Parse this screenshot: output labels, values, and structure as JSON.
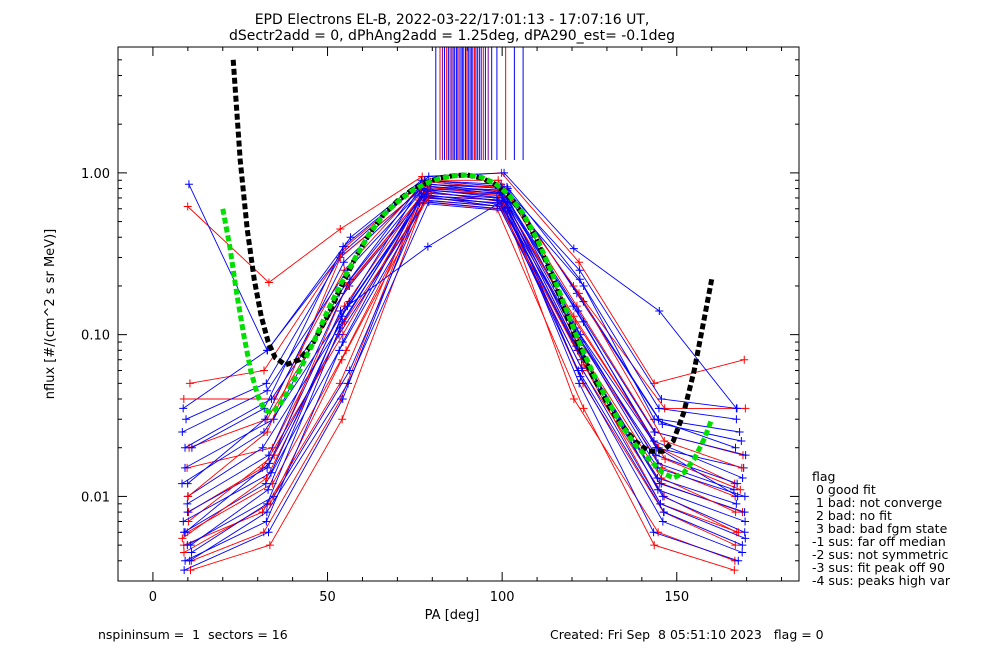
{
  "chart_data": {
    "type": "line",
    "title_line1": "EPD Electrons EL-B, 2022-03-22/17:01:13 - 17:07:16 UT,",
    "title_line2": "dSectr2add = 0, dPhAng2add = 1.25deg, dPA290_est=  -0.1deg",
    "xlabel": "PA [deg]",
    "ylabel": "nflux [#/(cm^2 s sr MeV)]",
    "x_range": [
      -10,
      185
    ],
    "y_range": [
      0.003,
      6.0
    ],
    "y_scale": "log",
    "x_ticks": [
      0,
      50,
      100,
      150
    ],
    "x_tick_labels": [
      "0",
      "50",
      "100",
      "150"
    ],
    "y_ticks": [
      0.01,
      0.1,
      1.0
    ],
    "y_tick_labels": [
      "0.01",
      "0.10",
      "1.00"
    ],
    "sectors_pa": [
      10,
      33,
      55,
      78,
      100,
      122,
      145,
      168
    ],
    "blue_profiles": [
      [
        0.85,
        0.08,
        0.32,
        0.95,
        1.0,
        0.34,
        0.14,
        0.035
      ],
      [
        0.035,
        0.08,
        0.4,
        0.9,
        0.85,
        0.25,
        0.04,
        0.035
      ],
      [
        0.03,
        0.05,
        0.3,
        0.88,
        0.8,
        0.2,
        0.035,
        0.03
      ],
      [
        0.025,
        0.045,
        0.25,
        0.85,
        0.8,
        0.18,
        0.03,
        0.025
      ],
      [
        0.02,
        0.04,
        0.2,
        0.82,
        0.78,
        0.16,
        0.028,
        0.022
      ],
      [
        0.015,
        0.03,
        0.18,
        0.8,
        0.75,
        0.14,
        0.025,
        0.018
      ],
      [
        0.012,
        0.025,
        0.15,
        0.78,
        0.72,
        0.12,
        0.02,
        0.015
      ],
      [
        0.01,
        0.02,
        0.12,
        0.75,
        0.7,
        0.1,
        0.018,
        0.012
      ],
      [
        0.008,
        0.015,
        0.1,
        0.72,
        0.68,
        0.09,
        0.015,
        0.01
      ],
      [
        0.006,
        0.012,
        0.08,
        0.7,
        0.65,
        0.08,
        0.012,
        0.008
      ],
      [
        0.005,
        0.01,
        0.06,
        0.68,
        0.62,
        0.07,
        0.01,
        0.006
      ],
      [
        0.004,
        0.008,
        0.05,
        0.66,
        0.6,
        0.06,
        0.008,
        0.005
      ],
      [
        0.0035,
        0.006,
        0.04,
        0.65,
        0.58,
        0.05,
        0.006,
        0.004
      ],
      [
        0.02,
        0.035,
        0.35,
        0.9,
        0.82,
        0.22,
        0.03,
        0.02
      ],
      [
        0.012,
        0.03,
        0.28,
        0.86,
        0.76,
        0.15,
        0.022,
        0.013
      ],
      [
        0.009,
        0.018,
        0.22,
        0.84,
        0.74,
        0.11,
        0.016,
        0.011
      ],
      [
        0.007,
        0.014,
        0.16,
        0.8,
        0.7,
        0.085,
        0.013,
        0.009
      ],
      [
        0.005,
        0.011,
        0.13,
        0.77,
        0.66,
        0.072,
        0.011,
        0.007
      ],
      [
        0.0045,
        0.009,
        0.11,
        0.74,
        0.64,
        0.062,
        0.009,
        0.0055
      ],
      [
        0.004,
        0.007,
        0.09,
        0.72,
        0.61,
        0.055,
        0.007,
        0.0045
      ],
      [
        0.006,
        0.016,
        0.14,
        0.35,
        0.7,
        0.1,
        0.02,
        0.01
      ]
    ],
    "red_profiles": [
      [
        0.62,
        0.21,
        0.45,
        0.95,
        1.0,
        0.28,
        0.05,
        0.07
      ],
      [
        0.05,
        0.06,
        0.35,
        0.9,
        0.9,
        0.2,
        0.035,
        0.035
      ],
      [
        0.04,
        0.04,
        0.25,
        0.85,
        0.82,
        0.15,
        0.025,
        0.018
      ],
      [
        0.02,
        0.03,
        0.2,
        0.8,
        0.78,
        0.12,
        0.02,
        0.012
      ],
      [
        0.015,
        0.02,
        0.15,
        0.78,
        0.74,
        0.1,
        0.015,
        0.01
      ],
      [
        0.008,
        0.015,
        0.1,
        0.75,
        0.7,
        0.08,
        0.012,
        0.008
      ],
      [
        0.006,
        0.012,
        0.08,
        0.72,
        0.68,
        0.06,
        0.01,
        0.006
      ],
      [
        0.005,
        0.008,
        0.05,
        0.7,
        0.65,
        0.05,
        0.008,
        0.005
      ],
      [
        0.004,
        0.006,
        0.04,
        0.68,
        0.62,
        0.04,
        0.006,
        0.004
      ],
      [
        0.0035,
        0.005,
        0.03,
        0.66,
        0.6,
        0.035,
        0.005,
        0.0035
      ],
      [
        0.01,
        0.025,
        0.3,
        0.88,
        0.8,
        0.18,
        0.022,
        0.015
      ],
      [
        0.007,
        0.018,
        0.2,
        0.82,
        0.72,
        0.13,
        0.017,
        0.011
      ],
      [
        0.0055,
        0.013,
        0.12,
        0.76,
        0.66,
        0.09,
        0.013,
        0.008
      ],
      [
        0.0045,
        0.009,
        0.07,
        0.71,
        0.62,
        0.065,
        0.009,
        0.006
      ]
    ],
    "fit_black": {
      "x": [
        23,
        25,
        27,
        29,
        31,
        33,
        35,
        38,
        42,
        46,
        50,
        54,
        58,
        62,
        66,
        70,
        74,
        78,
        82,
        86,
        90,
        94,
        98,
        102,
        106,
        110,
        114,
        118,
        122,
        126,
        130,
        134,
        138,
        142,
        146,
        149,
        152,
        155,
        158,
        160
      ],
      "y": [
        5.0,
        1.2,
        0.45,
        0.22,
        0.13,
        0.09,
        0.072,
        0.065,
        0.07,
        0.09,
        0.13,
        0.2,
        0.3,
        0.42,
        0.55,
        0.67,
        0.78,
        0.87,
        0.93,
        0.96,
        0.97,
        0.93,
        0.85,
        0.72,
        0.55,
        0.38,
        0.24,
        0.14,
        0.085,
        0.055,
        0.038,
        0.028,
        0.022,
        0.019,
        0.019,
        0.022,
        0.033,
        0.06,
        0.13,
        0.22
      ]
    },
    "fit_green": {
      "x": [
        20,
        22,
        24,
        26,
        28,
        30,
        32,
        34,
        36,
        38,
        42,
        46,
        50,
        54,
        58,
        62,
        66,
        70,
        74,
        78,
        82,
        86,
        90,
        94,
        98,
        102,
        106,
        110,
        114,
        118,
        122,
        126,
        130,
        134,
        138,
        142,
        146,
        149,
        152,
        155,
        158,
        160
      ],
      "y": [
        0.6,
        0.35,
        0.18,
        0.1,
        0.06,
        0.042,
        0.034,
        0.033,
        0.036,
        0.042,
        0.06,
        0.09,
        0.14,
        0.21,
        0.3,
        0.42,
        0.55,
        0.66,
        0.77,
        0.86,
        0.92,
        0.96,
        0.97,
        0.94,
        0.86,
        0.73,
        0.56,
        0.39,
        0.25,
        0.15,
        0.09,
        0.058,
        0.04,
        0.028,
        0.021,
        0.017,
        0.014,
        0.013,
        0.014,
        0.017,
        0.023,
        0.03
      ]
    },
    "peak_markers_pa": [
      81.0,
      82.2,
      82.9,
      83.5,
      84.1,
      84.6,
      85.1,
      85.6,
      86.0,
      86.4,
      86.9,
      87.3,
      87.7,
      88.2,
      88.6,
      89.0,
      89.5,
      89.9,
      90.3,
      90.8,
      91.2,
      91.6,
      92.1,
      92.5,
      93.0,
      93.5,
      94.0,
      94.6,
      95.2,
      96.0,
      97.0,
      98.5,
      101.0,
      103.5,
      106.0
    ],
    "peak_marker_colors": [
      "#0000ff",
      "#ff0000",
      "#8000a0",
      "#0000ff",
      "#ff0000",
      "#0000ff",
      "#8000a0",
      "#0000ff",
      "#ff0000",
      "#0000ff",
      "#0000ff",
      "#8000a0",
      "#ff0000",
      "#0000ff",
      "#0000ff",
      "#8000a0",
      "#0000ff",
      "#ff0000",
      "#0000ff",
      "#0000ff",
      "#8000a0",
      "#0000ff",
      "#ff0000",
      "#0000ff",
      "#0000ff",
      "#8000a0",
      "#0000ff",
      "#ff0000",
      "#0000ff",
      "#8000a0",
      "#0000ff",
      "#0000ff",
      "#ff0000",
      "#0000ff",
      "#0000ff"
    ],
    "legend": {
      "title": "flag",
      "entries": [
        " 0 good fit",
        " 1 bad: not converge",
        " 2 bad: no fit",
        " 3 bad: bad fgm state",
        "-1 sus: far off median",
        "-2 sus: not symmetric",
        "-3 sus: fit peak off 90",
        "-4 sus: peaks high var"
      ],
      "placement": "right"
    },
    "footer_left": "nspininsum =  1  sectors = 16",
    "footer_right": "Created: Fri Sep  8 05:51:10 2023   flag = 0",
    "colors": {
      "blue": "#0000ff",
      "red": "#ff0000",
      "black_fit": "#000000",
      "green_fit": "#00e000",
      "purple": "#8000a0"
    }
  }
}
